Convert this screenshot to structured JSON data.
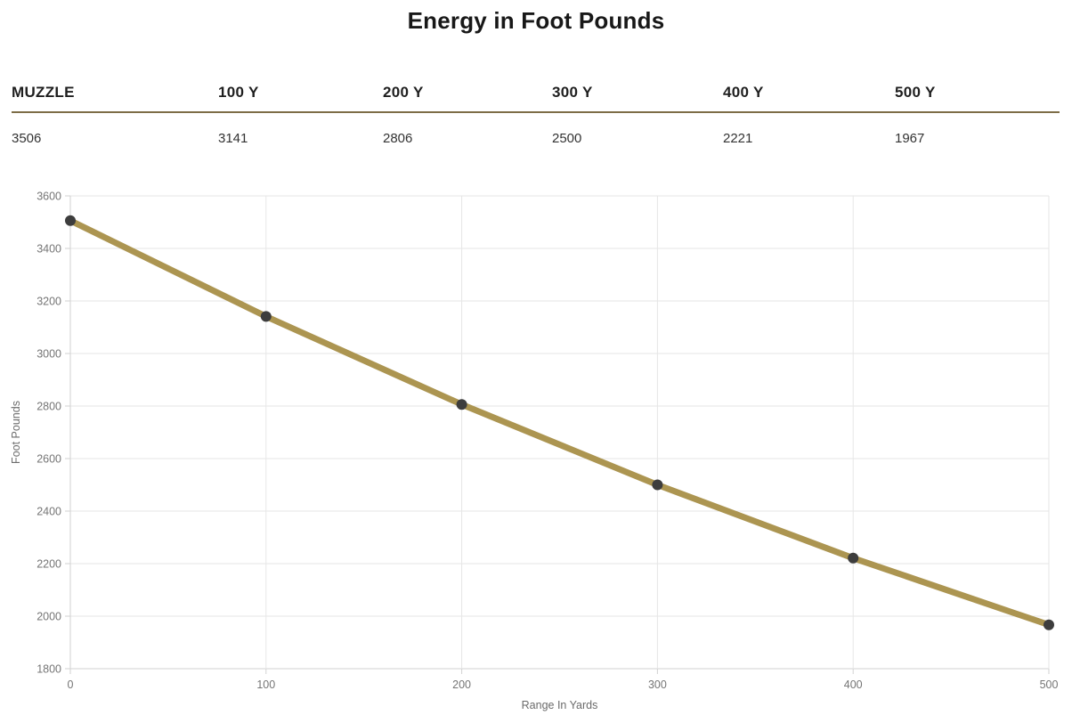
{
  "title": "Energy in Foot Pounds",
  "table": {
    "headers": [
      "MUZZLE",
      "100 Y",
      "200 Y",
      "300 Y",
      "400 Y",
      "500 Y"
    ],
    "values": [
      "3506",
      "3141",
      "2806",
      "2500",
      "2221",
      "1967"
    ]
  },
  "chart_data": {
    "type": "line",
    "x": [
      0,
      100,
      200,
      300,
      400,
      500
    ],
    "series": [
      {
        "name": "Energy in Foot Pounds",
        "values": [
          3506,
          3141,
          2806,
          2500,
          2221,
          1967
        ]
      }
    ],
    "title": "Energy in Foot Pounds",
    "xlabel": "Range In Yards",
    "ylabel": "Foot Pounds",
    "xlim": [
      0,
      500
    ],
    "ylim": [
      1800,
      3600
    ],
    "xtick_step": 100,
    "ytick_step": 200,
    "grid": true,
    "legend": false,
    "colors": {
      "line": "#ac9551",
      "point": "#3d3d3d",
      "grid": "#e6e6e6",
      "axis": "#d2d2d2",
      "tick_label": "#757575",
      "axis_title": "#6b6b6b",
      "table_divider": "#7d6d47"
    }
  }
}
